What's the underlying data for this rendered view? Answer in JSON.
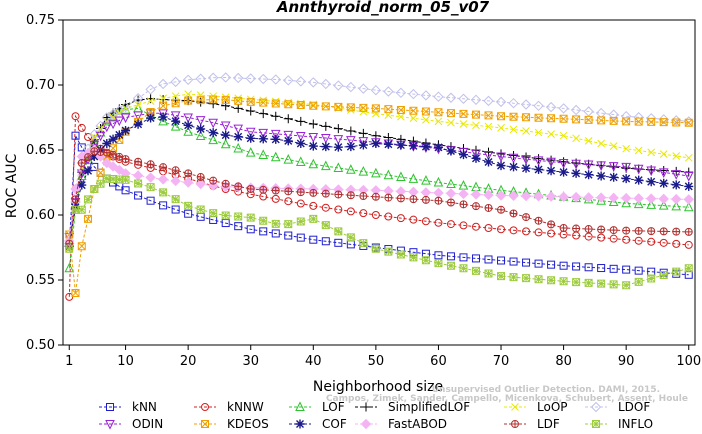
{
  "chart_data": {
    "type": "line",
    "title": "Annthyroid_norm_05_v07",
    "xlabel": "Neighborhood size",
    "ylabel": "ROC AUC",
    "xlim": [
      0,
      101
    ],
    "ylim": [
      0.5,
      0.75
    ],
    "xticks": [
      1,
      10,
      20,
      30,
      40,
      50,
      60,
      70,
      80,
      90,
      100
    ],
    "yticks": [
      "0.50",
      "0.55",
      "0.60",
      "0.65",
      "0.70",
      "0.75"
    ],
    "grid": false,
    "legend_position": "bottom",
    "series": [
      {
        "name": "kNN",
        "color": "#1f1fcf",
        "marker": "square",
        "points": [
          [
            1,
            0.577
          ],
          [
            2,
            0.661
          ],
          [
            3,
            0.652
          ],
          [
            4,
            0.645
          ],
          [
            5,
            0.637
          ],
          [
            7,
            0.628
          ],
          [
            10,
            0.619
          ],
          [
            15,
            0.609
          ],
          [
            20,
            0.601
          ],
          [
            25,
            0.595
          ],
          [
            30,
            0.589
          ],
          [
            40,
            0.581
          ],
          [
            50,
            0.575
          ],
          [
            60,
            0.569
          ],
          [
            70,
            0.565
          ],
          [
            80,
            0.561
          ],
          [
            90,
            0.558
          ],
          [
            100,
            0.554
          ]
        ]
      },
      {
        "name": "kNNW",
        "color": "#d22020",
        "marker": "circle",
        "points": [
          [
            1,
            0.537
          ],
          [
            2,
            0.676
          ],
          [
            3,
            0.667
          ],
          [
            4,
            0.66
          ],
          [
            5,
            0.655
          ],
          [
            7,
            0.647
          ],
          [
            10,
            0.641
          ],
          [
            15,
            0.635
          ],
          [
            20,
            0.628
          ],
          [
            25,
            0.621
          ],
          [
            30,
            0.616
          ],
          [
            40,
            0.607
          ],
          [
            50,
            0.6
          ],
          [
            60,
            0.594
          ],
          [
            70,
            0.589
          ],
          [
            80,
            0.585
          ],
          [
            90,
            0.581
          ],
          [
            100,
            0.577
          ]
        ]
      },
      {
        "name": "LOF",
        "color": "#2ec42e",
        "marker": "triangle",
        "points": [
          [
            1,
            0.559
          ],
          [
            2,
            0.604
          ],
          [
            3,
            0.63
          ],
          [
            5,
            0.655
          ],
          [
            7,
            0.672
          ],
          [
            10,
            0.681
          ],
          [
            12,
            0.682
          ],
          [
            15,
            0.674
          ],
          [
            20,
            0.664
          ],
          [
            25,
            0.656
          ],
          [
            30,
            0.648
          ],
          [
            40,
            0.639
          ],
          [
            50,
            0.632
          ],
          [
            60,
            0.625
          ],
          [
            70,
            0.619
          ],
          [
            80,
            0.614
          ],
          [
            90,
            0.609
          ],
          [
            100,
            0.606
          ]
        ]
      },
      {
        "name": "SimplifiedLOF",
        "color": "#000000",
        "marker": "plus",
        "points": [
          [
            1,
            0.576
          ],
          [
            2,
            0.605
          ],
          [
            3,
            0.633
          ],
          [
            5,
            0.658
          ],
          [
            7,
            0.675
          ],
          [
            10,
            0.685
          ],
          [
            13,
            0.69
          ],
          [
            15,
            0.689
          ],
          [
            20,
            0.688
          ],
          [
            25,
            0.685
          ],
          [
            30,
            0.68
          ],
          [
            40,
            0.67
          ],
          [
            50,
            0.661
          ],
          [
            60,
            0.654
          ],
          [
            70,
            0.647
          ],
          [
            80,
            0.641
          ],
          [
            90,
            0.636
          ],
          [
            100,
            0.633
          ]
        ]
      },
      {
        "name": "LoOP",
        "color": "#e8e800",
        "marker": "x",
        "points": [
          [
            1,
            0.575
          ],
          [
            2,
            0.605
          ],
          [
            3,
            0.636
          ],
          [
            5,
            0.66
          ],
          [
            7,
            0.672
          ],
          [
            10,
            0.682
          ],
          [
            15,
            0.689
          ],
          [
            20,
            0.693
          ],
          [
            25,
            0.691
          ],
          [
            30,
            0.689
          ],
          [
            40,
            0.685
          ],
          [
            50,
            0.678
          ],
          [
            60,
            0.672
          ],
          [
            70,
            0.667
          ],
          [
            80,
            0.661
          ],
          [
            90,
            0.651
          ],
          [
            100,
            0.644
          ]
        ]
      },
      {
        "name": "LDOF",
        "color": "#c0c0ec",
        "marker": "diamond",
        "points": [
          [
            1,
            0.578
          ],
          [
            2,
            0.61
          ],
          [
            3,
            0.64
          ],
          [
            5,
            0.662
          ],
          [
            7,
            0.675
          ],
          [
            10,
            0.683
          ],
          [
            15,
            0.7
          ],
          [
            20,
            0.704
          ],
          [
            25,
            0.706
          ],
          [
            30,
            0.705
          ],
          [
            35,
            0.704
          ],
          [
            40,
            0.702
          ],
          [
            50,
            0.696
          ],
          [
            60,
            0.691
          ],
          [
            70,
            0.687
          ],
          [
            80,
            0.682
          ],
          [
            90,
            0.676
          ],
          [
            100,
            0.672
          ]
        ]
      },
      {
        "name": "ODIN",
        "color": "#9a22d6",
        "marker": "triangle-down",
        "points": [
          [
            1,
            0.583
          ],
          [
            2,
            0.61
          ],
          [
            3,
            0.632
          ],
          [
            5,
            0.654
          ],
          [
            7,
            0.668
          ],
          [
            10,
            0.675
          ],
          [
            15,
            0.679
          ],
          [
            20,
            0.675
          ],
          [
            25,
            0.67
          ],
          [
            30,
            0.664
          ],
          [
            40,
            0.66
          ],
          [
            50,
            0.656
          ],
          [
            60,
            0.651
          ],
          [
            70,
            0.645
          ],
          [
            80,
            0.64
          ],
          [
            90,
            0.637
          ],
          [
            100,
            0.63
          ]
        ]
      },
      {
        "name": "KDEOS",
        "color": "#f0a000",
        "marker": "square-x",
        "points": [
          [
            1,
            0.585
          ],
          [
            2,
            0.54
          ],
          [
            3,
            0.576
          ],
          [
            4,
            0.597
          ],
          [
            5,
            0.62
          ],
          [
            7,
            0.645
          ],
          [
            10,
            0.664
          ],
          [
            15,
            0.683
          ],
          [
            20,
            0.688
          ],
          [
            25,
            0.689
          ],
          [
            30,
            0.687
          ],
          [
            40,
            0.684
          ],
          [
            50,
            0.682
          ],
          [
            60,
            0.679
          ],
          [
            70,
            0.676
          ],
          [
            80,
            0.674
          ],
          [
            90,
            0.672
          ],
          [
            100,
            0.671
          ]
        ]
      },
      {
        "name": "COF",
        "color": "#1a1a8a",
        "marker": "star",
        "points": [
          [
            1,
            0.576
          ],
          [
            2,
            0.606
          ],
          [
            3,
            0.623
          ],
          [
            5,
            0.645
          ],
          [
            7,
            0.655
          ],
          [
            10,
            0.665
          ],
          [
            15,
            0.677
          ],
          [
            20,
            0.669
          ],
          [
            25,
            0.662
          ],
          [
            30,
            0.659
          ],
          [
            35,
            0.658
          ],
          [
            40,
            0.653
          ],
          [
            45,
            0.652
          ],
          [
            50,
            0.655
          ],
          [
            60,
            0.652
          ],
          [
            70,
            0.638
          ],
          [
            80,
            0.633
          ],
          [
            90,
            0.628
          ],
          [
            100,
            0.622
          ]
        ]
      },
      {
        "name": "FastABOD",
        "color": "#f4b4f4",
        "marker": "diamond-fill",
        "points": [
          [
            1,
            0.58
          ],
          [
            2,
            0.62
          ],
          [
            3,
            0.645
          ],
          [
            5,
            0.65
          ],
          [
            7,
            0.64
          ],
          [
            10,
            0.632
          ],
          [
            15,
            0.628
          ],
          [
            20,
            0.625
          ],
          [
            25,
            0.622
          ],
          [
            30,
            0.621
          ],
          [
            40,
            0.62
          ],
          [
            50,
            0.619
          ],
          [
            60,
            0.617
          ],
          [
            70,
            0.615
          ],
          [
            80,
            0.614
          ],
          [
            90,
            0.613
          ],
          [
            100,
            0.612
          ]
        ]
      },
      {
        "name": "LDF",
        "color": "#b03030",
        "marker": "circle-plus",
        "points": [
          [
            1,
            0.578
          ],
          [
            2,
            0.612
          ],
          [
            3,
            0.64
          ],
          [
            5,
            0.649
          ],
          [
            7,
            0.648
          ],
          [
            10,
            0.643
          ],
          [
            15,
            0.638
          ],
          [
            20,
            0.632
          ],
          [
            25,
            0.625
          ],
          [
            30,
            0.62
          ],
          [
            40,
            0.617
          ],
          [
            50,
            0.614
          ],
          [
            60,
            0.611
          ],
          [
            70,
            0.604
          ],
          [
            80,
            0.59
          ],
          [
            90,
            0.588
          ],
          [
            100,
            0.587
          ]
        ]
      },
      {
        "name": "INFLO",
        "color": "#9ccc3c",
        "marker": "star-box",
        "points": [
          [
            1,
            0.574
          ],
          [
            2,
            0.604
          ],
          [
            3,
            0.604
          ],
          [
            5,
            0.62
          ],
          [
            7,
            0.628
          ],
          [
            10,
            0.627
          ],
          [
            15,
            0.62
          ],
          [
            20,
            0.607
          ],
          [
            25,
            0.6
          ],
          [
            30,
            0.598
          ],
          [
            35,
            0.592
          ],
          [
            40,
            0.597
          ],
          [
            45,
            0.585
          ],
          [
            50,
            0.574
          ],
          [
            60,
            0.563
          ],
          [
            70,
            0.553
          ],
          [
            80,
            0.549
          ],
          [
            90,
            0.546
          ],
          [
            100,
            0.559
          ]
        ]
      }
    ]
  },
  "watermark": {
    "line1": "Unsupervised Outlier Detection. DAMI, 2015.",
    "line2": "Campos, Zimek, Sander, Campello, Micenkova, Schubert, Assent, Houle"
  }
}
